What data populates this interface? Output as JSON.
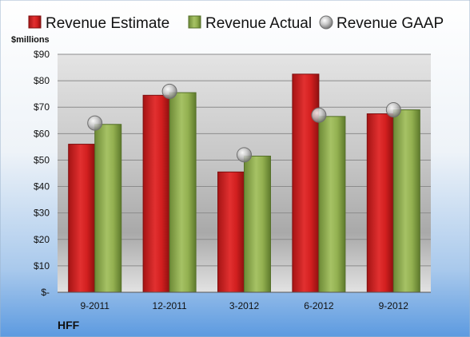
{
  "chart_data": {
    "type": "bar",
    "unit_label": "$millions",
    "company": "HFF",
    "categories": [
      "9-2011",
      "12-2011",
      "3-2012",
      "6-2012",
      "9-2012"
    ],
    "y_tick_labels": [
      "$-",
      "$10",
      "$20",
      "$30",
      "$40",
      "$50",
      "$60",
      "$70",
      "$80",
      "$90"
    ],
    "ylim": [
      0,
      90
    ],
    "grid": true,
    "legend_position": "top",
    "series": [
      {
        "name": "Revenue Estimate",
        "kind": "bar",
        "color": "#d42020",
        "values": [
          56,
          74.5,
          45.5,
          82.5,
          67.5
        ]
      },
      {
        "name": "Revenue Actual",
        "kind": "bar",
        "color": "#8aa84a",
        "values": [
          63.5,
          75.5,
          51.5,
          66.5,
          69
        ]
      },
      {
        "name": "Revenue GAAP",
        "kind": "marker",
        "color": "#b0b0b0",
        "values": [
          64,
          76,
          52,
          67,
          69
        ]
      }
    ]
  }
}
